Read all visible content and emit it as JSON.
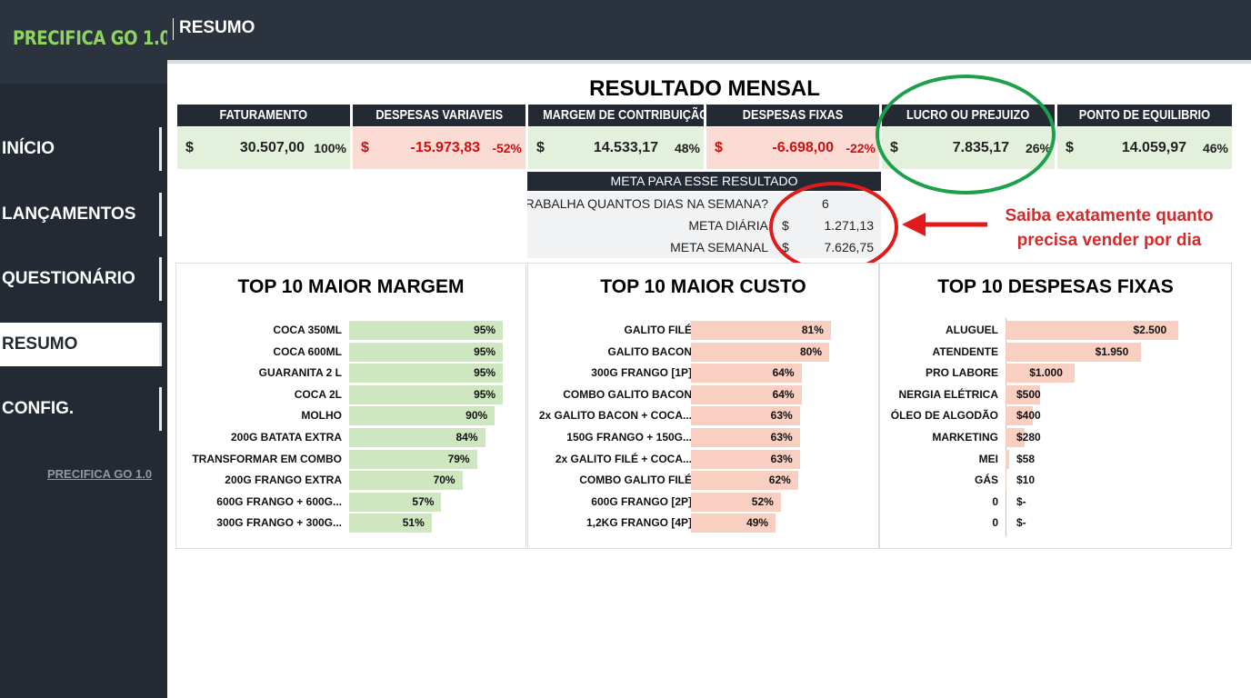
{
  "app": {
    "logo": "PRECIFICA GO 1.0",
    "footer_link": "PRECIFICA GO 1.0",
    "page_title": "RESUMO"
  },
  "nav": [
    {
      "label": "INÍCIO",
      "active": false
    },
    {
      "label": "LANÇAMENTOS",
      "active": false
    },
    {
      "label": "QUESTIONÁRIO",
      "active": false
    },
    {
      "label": "RESUMO",
      "active": true
    },
    {
      "label": "CONFIG.",
      "active": false
    }
  ],
  "summary": {
    "title": "RESULTADO MENSAL",
    "kpis": [
      {
        "label": "FATURAMENTO",
        "currency": "$",
        "value": "30.507,00",
        "percent": "100%",
        "tone": "green"
      },
      {
        "label": "DESPESAS VARIAVEIS",
        "currency": "$",
        "value": "-15.973,83",
        "percent": "-52%",
        "tone": "red"
      },
      {
        "label": "MARGEM DE CONTRIBUIÇÃO",
        "currency": "$",
        "value": "14.533,17",
        "percent": "48%",
        "tone": "green"
      },
      {
        "label": "DESPESAS FIXAS",
        "currency": "$",
        "value": "-6.698,00",
        "percent": "-22%",
        "tone": "red"
      },
      {
        "label": "LUCRO OU PREJUIZO",
        "currency": "$",
        "value": "7.835,17",
        "percent": "26%",
        "tone": "green"
      },
      {
        "label": "PONTO DE EQUILIBRIO",
        "currency": "$",
        "value": "14.059,97",
        "percent": "46%",
        "tone": "green"
      }
    ]
  },
  "meta": {
    "title": "META PARA ESSE RESULTADO",
    "days_label": "TRABALHA QUANTOS DIAS NA SEMANA?",
    "days_value": "6",
    "daily_label": "META DIÁRIA",
    "daily_currency": "$",
    "daily_value": "1.271,13",
    "weekly_label": "META SEMANAL",
    "weekly_currency": "$",
    "weekly_value": "7.626,75"
  },
  "callout": {
    "line1": "Saiba exatamente quanto",
    "line2": "precisa vender por dia"
  },
  "colors": {
    "sidebar": "#232a33",
    "logo": "#8dd35f",
    "margin_bar": "#cfe7c1",
    "cost_bar": "#f8cfc0",
    "fixed_bar": "#f8cfc0",
    "highlight_green": "#1aa14a",
    "highlight_red": "#e21a1a"
  },
  "chart_data": [
    {
      "type": "bar",
      "title": "TOP 10 MAIOR MARGEM",
      "categories": [
        "COCA 350ML",
        "COCA 600ML",
        "GUARANITA 2 L",
        "COCA 2L",
        "MOLHO",
        "200G BATATA EXTRA",
        "TRANSFORMAR EM COMBO",
        "200G FRANGO EXTRA",
        "600G FRANGO + 600G...",
        "300G FRANGO + 300G..."
      ],
      "values": [
        95,
        95,
        95,
        95,
        90,
        84,
        79,
        70,
        57,
        51
      ],
      "labels": [
        "95%",
        "95%",
        "95%",
        "95%",
        "90%",
        "84%",
        "79%",
        "70%",
        "57%",
        "51%"
      ],
      "xlim": [
        0,
        100
      ]
    },
    {
      "type": "bar",
      "title": "TOP 10 MAIOR CUSTO",
      "categories": [
        "GALITO FILÉ",
        "GALITO BACON",
        "300G FRANGO [1P]",
        "COMBO GALITO BACON",
        "2x GALITO BACON + COCA...",
        "150G FRANGO + 150G...",
        "2x GALITO FILÉ + COCA...",
        "COMBO GALITO FILÉ",
        "600G FRANGO [2P]",
        "1,2KG FRANGO [4P]"
      ],
      "values": [
        81,
        80,
        64,
        64,
        63,
        63,
        63,
        62,
        52,
        49
      ],
      "labels": [
        "81%",
        "80%",
        "64%",
        "64%",
        "63%",
        "63%",
        "63%",
        "62%",
        "52%",
        "49%"
      ],
      "xlim": [
        0,
        100
      ]
    },
    {
      "type": "bar",
      "title": "TOP 10 DESPESAS FIXAS",
      "categories": [
        "ALUGUEL",
        "ATENDENTE",
        "PRO LABORE",
        "NERGIA ELÉTRICA",
        "ÓLEO DE ALGODÃO",
        "MARKETING",
        "MEI",
        "GÁS",
        "0",
        "0"
      ],
      "values": [
        2500,
        1950,
        1000,
        500,
        400,
        280,
        58,
        10,
        0,
        0
      ],
      "labels": [
        "$2.500",
        "$1.950",
        "$1.000",
        "$500",
        "$400",
        "$280",
        "$58",
        "$10",
        "$-",
        "$-"
      ],
      "xlim": [
        0,
        3150
      ]
    }
  ]
}
